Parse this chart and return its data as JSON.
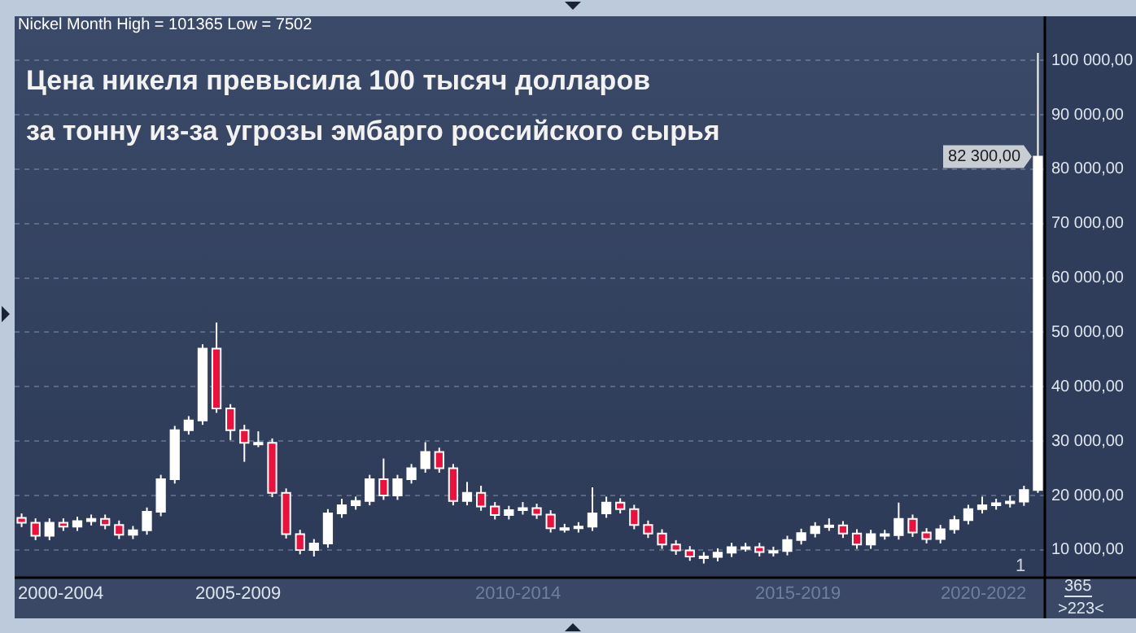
{
  "chart_data": {
    "type": "candlestick",
    "subtitle": "Nickel Month High = 101365 Low = 7502",
    "title": "Цена никеля превысила 100 тысяч долларов\nза тонну из-за угрозы эмбарго российского сырья",
    "categories": [
      null,
      null,
      null,
      null,
      null,
      null,
      null,
      null,
      null,
      null,
      null,
      null,
      null,
      null,
      null,
      null,
      null,
      null,
      null,
      null,
      null,
      null,
      null,
      null,
      null,
      null,
      null,
      null,
      null,
      null,
      null,
      null,
      null,
      null,
      null,
      null,
      null,
      null,
      null,
      null,
      null,
      null,
      null,
      null,
      null,
      null,
      null,
      null,
      null,
      null,
      null,
      null,
      null,
      null,
      null,
      null,
      null,
      null,
      null,
      null,
      null,
      null,
      null,
      null,
      null,
      null,
      null,
      null,
      null,
      null,
      null,
      null,
      null,
      null
    ],
    "ohlc": [
      [
        15900,
        16700,
        14200,
        15000
      ],
      [
        15000,
        15800,
        11800,
        12600
      ],
      [
        12600,
        15800,
        11800,
        15000
      ],
      [
        15000,
        15800,
        13500,
        14300
      ],
      [
        14300,
        16100,
        13500,
        15300
      ],
      [
        15300,
        16500,
        14500,
        15700
      ],
      [
        15700,
        16500,
        13800,
        14600
      ],
      [
        14600,
        15400,
        12000,
        12800
      ],
      [
        12800,
        14400,
        12000,
        13600
      ],
      [
        13600,
        17800,
        12800,
        17000
      ],
      [
        17000,
        23800,
        16200,
        23000
      ],
      [
        23000,
        32800,
        22200,
        32000
      ],
      [
        32000,
        34600,
        31200,
        33800
      ],
      [
        33800,
        47800,
        33000,
        47000
      ],
      [
        47000,
        51800,
        35200,
        36000
      ],
      [
        36000,
        36800,
        30200,
        32000
      ],
      [
        32000,
        33000,
        26200,
        29700
      ],
      [
        29700,
        31800,
        28900,
        29700
      ],
      [
        29700,
        30500,
        19700,
        20500
      ],
      [
        20500,
        21300,
        12100,
        12900
      ],
      [
        12900,
        13700,
        9200,
        10000
      ],
      [
        10000,
        12000,
        8800,
        11200
      ],
      [
        11200,
        17500,
        10400,
        16700
      ],
      [
        16700,
        19400,
        15900,
        18200
      ],
      [
        18200,
        19800,
        17400,
        19000
      ],
      [
        19000,
        23800,
        18200,
        23000
      ],
      [
        23000,
        26800,
        19200,
        20000
      ],
      [
        20000,
        23800,
        19200,
        23000
      ],
      [
        23000,
        25800,
        22200,
        25000
      ],
      [
        25000,
        29800,
        24200,
        28000
      ],
      [
        28000,
        28800,
        24200,
        25000
      ],
      [
        25000,
        25800,
        18200,
        19000
      ],
      [
        19000,
        22500,
        18200,
        20500
      ],
      [
        20500,
        21800,
        17200,
        18000
      ],
      [
        18000,
        18800,
        15600,
        16400
      ],
      [
        16400,
        18100,
        15600,
        17300
      ],
      [
        17300,
        18800,
        16500,
        17700
      ],
      [
        17700,
        18500,
        15700,
        16500
      ],
      [
        16500,
        17300,
        13200,
        14000
      ],
      [
        14000,
        14800,
        13200,
        14000
      ],
      [
        14000,
        15100,
        13200,
        14300
      ],
      [
        14300,
        21500,
        13500,
        16700
      ],
      [
        16700,
        19800,
        15900,
        18700
      ],
      [
        18700,
        19500,
        16700,
        17500
      ],
      [
        17500,
        18300,
        13800,
        14600
      ],
      [
        14600,
        15400,
        12200,
        13000
      ],
      [
        13000,
        13800,
        10200,
        11000
      ],
      [
        11000,
        11800,
        9100,
        9900
      ],
      [
        9900,
        10700,
        8000,
        8800
      ],
      [
        8800,
        9600,
        7502,
        8700
      ],
      [
        8700,
        10300,
        7900,
        9500
      ],
      [
        9500,
        11300,
        8700,
        10500
      ],
      [
        10500,
        11300,
        9700,
        10500
      ],
      [
        10500,
        11300,
        8800,
        9600
      ],
      [
        9600,
        10600,
        8800,
        9800
      ],
      [
        9800,
        12600,
        9000,
        11800
      ],
      [
        11800,
        13900,
        11000,
        13100
      ],
      [
        13100,
        15100,
        12300,
        14300
      ],
      [
        14300,
        15800,
        13500,
        14500
      ],
      [
        14500,
        15300,
        12200,
        13000
      ],
      [
        13000,
        13800,
        10200,
        11000
      ],
      [
        11000,
        13700,
        10200,
        12900
      ],
      [
        12900,
        13700,
        11900,
        12700
      ],
      [
        12700,
        18700,
        11900,
        15700
      ],
      [
        15700,
        16500,
        12400,
        13200
      ],
      [
        13200,
        14000,
        11200,
        12000
      ],
      [
        12000,
        14600,
        11200,
        13800
      ],
      [
        13800,
        16300,
        13000,
        15500
      ],
      [
        15500,
        18300,
        14700,
        17500
      ],
      [
        17500,
        19800,
        16700,
        18200
      ],
      [
        18200,
        19400,
        17400,
        18600
      ],
      [
        18600,
        20000,
        17800,
        18900
      ],
      [
        18900,
        21800,
        18100,
        21000
      ],
      [
        21000,
        101365,
        20500,
        82300
      ]
    ],
    "colors": [
      "#e8123c",
      "#e8123c",
      "#ffffff",
      "#e8123c",
      "#ffffff",
      "#ffffff",
      "#e8123c",
      "#e8123c",
      "#ffffff",
      "#ffffff",
      "#ffffff",
      "#ffffff",
      "#ffffff",
      "#ffffff",
      "#e8123c",
      "#e8123c",
      "#e8123c",
      "#ffffff",
      "#e8123c",
      "#e8123c",
      "#e8123c",
      "#ffffff",
      "#ffffff",
      "#ffffff",
      "#ffffff",
      "#ffffff",
      "#e8123c",
      "#ffffff",
      "#ffffff",
      "#ffffff",
      "#e8123c",
      "#e8123c",
      "#ffffff",
      "#e8123c",
      "#e8123c",
      "#ffffff",
      "#ffffff",
      "#e8123c",
      "#e8123c",
      "#ffffff",
      "#ffffff",
      "#ffffff",
      "#ffffff",
      "#e8123c",
      "#e8123c",
      "#e8123c",
      "#e8123c",
      "#e8123c",
      "#e8123c",
      "#e8123c",
      "#ffffff",
      "#ffffff",
      "#ffffff",
      "#e8123c",
      "#ffffff",
      "#ffffff",
      "#ffffff",
      "#ffffff",
      "#ffffff",
      "#e8123c",
      "#e8123c",
      "#ffffff",
      "#e8123c",
      "#ffffff",
      "#e8123c",
      "#e8123c",
      "#ffffff",
      "#ffffff",
      "#ffffff",
      "#ffffff",
      "#ffffff",
      "#ffffff",
      "#ffffff",
      "#ffffff"
    ],
    "ylim": [
      4900,
      108100
    ],
    "yticks": [
      {
        "value": 10000,
        "label": "10 000,00"
      },
      {
        "value": 20000,
        "label": "20 000,00"
      },
      {
        "value": 30000,
        "label": "30 000,00"
      },
      {
        "value": 40000,
        "label": "40 000,00"
      },
      {
        "value": 50000,
        "label": "50 000,00"
      },
      {
        "value": 60000,
        "label": "60 000,00"
      },
      {
        "value": 70000,
        "label": "70 000,00"
      },
      {
        "value": 80000,
        "label": "80 000,00"
      },
      {
        "value": 90000,
        "label": "90 000,00"
      },
      {
        "value": 100000,
        "label": "100 000,00"
      }
    ],
    "tick_labels": "y",
    "grid": "y",
    "annotations": [
      "2000-2004",
      "2005-2009",
      "2010-2014",
      "2015-2019",
      "2020-2022",
      "365",
      ">223<",
      "1",
      "82 300,00"
    ]
  }
}
